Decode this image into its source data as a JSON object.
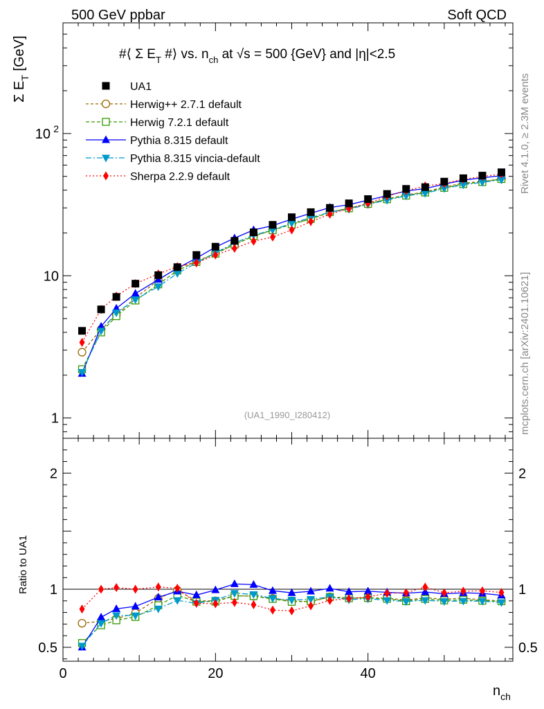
{
  "header": {
    "left": "500 GeV ppbar",
    "right": "Soft QCD"
  },
  "side_labels": {
    "rivet": "Rivet 4.1.0, ≥ 2.3M events",
    "mcplots": "mcplots.cern.ch [arXiv:2401.10621]"
  },
  "chart_data": {
    "type": "line",
    "title": "#⟨ Σ E_T #⟩ vs. n_ch at √s = 500 {GeV} and |η|<2.5",
    "title_parts": {
      "a": "#⟨ Σ E",
      "a_sub": "T",
      "b": " #⟩ vs. n",
      "b_sub": "ch",
      "c": " at ",
      "d": "s = 500 {GeV} and |η|<2.5"
    },
    "ylabel": "Σ E_T [GeV]",
    "ylabel_parts": {
      "main": "Σ E",
      "sub": "T",
      "rest": " [GeV]"
    },
    "ratio_ylabel": "Ratio to UA1",
    "xlabel": "n_ch",
    "xlabel_parts": {
      "main": "n",
      "sub": "ch"
    },
    "watermark": "(UA1_1990_I280412)",
    "xlim": [
      0,
      59
    ],
    "ylim": [
      0.72,
      600
    ],
    "ratio_ylim": [
      0.38,
      2.3
    ],
    "xticks": [
      0,
      20,
      40
    ],
    "yticks": [
      {
        "v": 1,
        "label": "1"
      },
      {
        "v": 10,
        "label": "10"
      },
      {
        "v": 100,
        "label": "10",
        "sup": "2"
      }
    ],
    "ratio_yticks": [
      {
        "v": 0.5,
        "label": "0.5"
      },
      {
        "v": 1,
        "label": "1"
      },
      {
        "v": 2,
        "label": "2"
      }
    ],
    "x": [
      2.5,
      5,
      7,
      9.5,
      12.5,
      15,
      17.5,
      20,
      22.5,
      25,
      27.5,
      30,
      32.5,
      35,
      37.5,
      40,
      42.5,
      45,
      47.5,
      50,
      52.5,
      55,
      57.5
    ],
    "data": {
      "name": "UA1",
      "values": [
        4.1,
        5.8,
        7.1,
        8.8,
        10.1,
        11.5,
        14.0,
        16.0,
        17.6,
        20.2,
        22.8,
        25.8,
        28.0,
        30.0,
        32.3,
        34.6,
        37.6,
        40.8,
        42.0,
        45.9,
        48.5,
        50.6,
        53.4
      ]
    },
    "series": [
      {
        "name": "Herwig++ 2.7.1 default",
        "color": "#996600",
        "marker": "circle-open",
        "dash": "4,3",
        "values": [
          2.9,
          4.2,
          5.3,
          7.0,
          9.3,
          11.4,
          12.6,
          14.4,
          16.6,
          19.0,
          21.0,
          23.2,
          25.0,
          28.0,
          29.9,
          32.0,
          34.7,
          37.0,
          38.9,
          42.0,
          44.8,
          46.0,
          48.0
        ]
      },
      {
        "name": "Herwig 7.2.1 default",
        "color": "#339900",
        "marker": "square-open",
        "dash": "5,3",
        "values": [
          2.2,
          4.0,
          5.2,
          6.7,
          8.7,
          10.9,
          12.5,
          14.3,
          16.6,
          19.0,
          20.9,
          23.0,
          25.1,
          28.0,
          29.8,
          32.0,
          34.5,
          36.6,
          38.5,
          41.5,
          44.1,
          45.6,
          47.9
        ]
      },
      {
        "name": "Pythia 8.315 default",
        "color": "#0000ff",
        "marker": "triangle-up",
        "dash": "",
        "values": [
          2.05,
          4.4,
          5.9,
          7.5,
          9.4,
          11.3,
          13.3,
          15.9,
          18.4,
          21.0,
          22.5,
          25.0,
          27.5,
          30.2,
          31.6,
          34.0,
          36.6,
          39.4,
          41.0,
          44.1,
          47.0,
          48.8,
          50.6
        ]
      },
      {
        "name": "Pythia 8.315 vincia-default",
        "color": "#0099cc",
        "marker": "triangle-down",
        "dash": "8,3,2,3",
        "values": [
          2.1,
          4.1,
          5.5,
          6.8,
          8.4,
          10.4,
          12.3,
          14.5,
          17.0,
          19.3,
          21.0,
          23.4,
          25.6,
          28.0,
          29.4,
          31.8,
          34.0,
          36.5,
          38.0,
          41.1,
          43.6,
          45.4,
          47.3
        ]
      },
      {
        "name": "Sherpa 2.2.9 default",
        "color": "#ff0000",
        "marker": "diamond",
        "dash": "2,3",
        "values": [
          3.4,
          5.8,
          7.2,
          8.8,
          10.3,
          11.6,
          12.3,
          14.0,
          15.6,
          17.5,
          18.7,
          21.0,
          24.0,
          27.1,
          29.7,
          32.3,
          36.3,
          39.6,
          42.8,
          44.5,
          47.7,
          49.9,
          51.9
        ]
      }
    ]
  }
}
